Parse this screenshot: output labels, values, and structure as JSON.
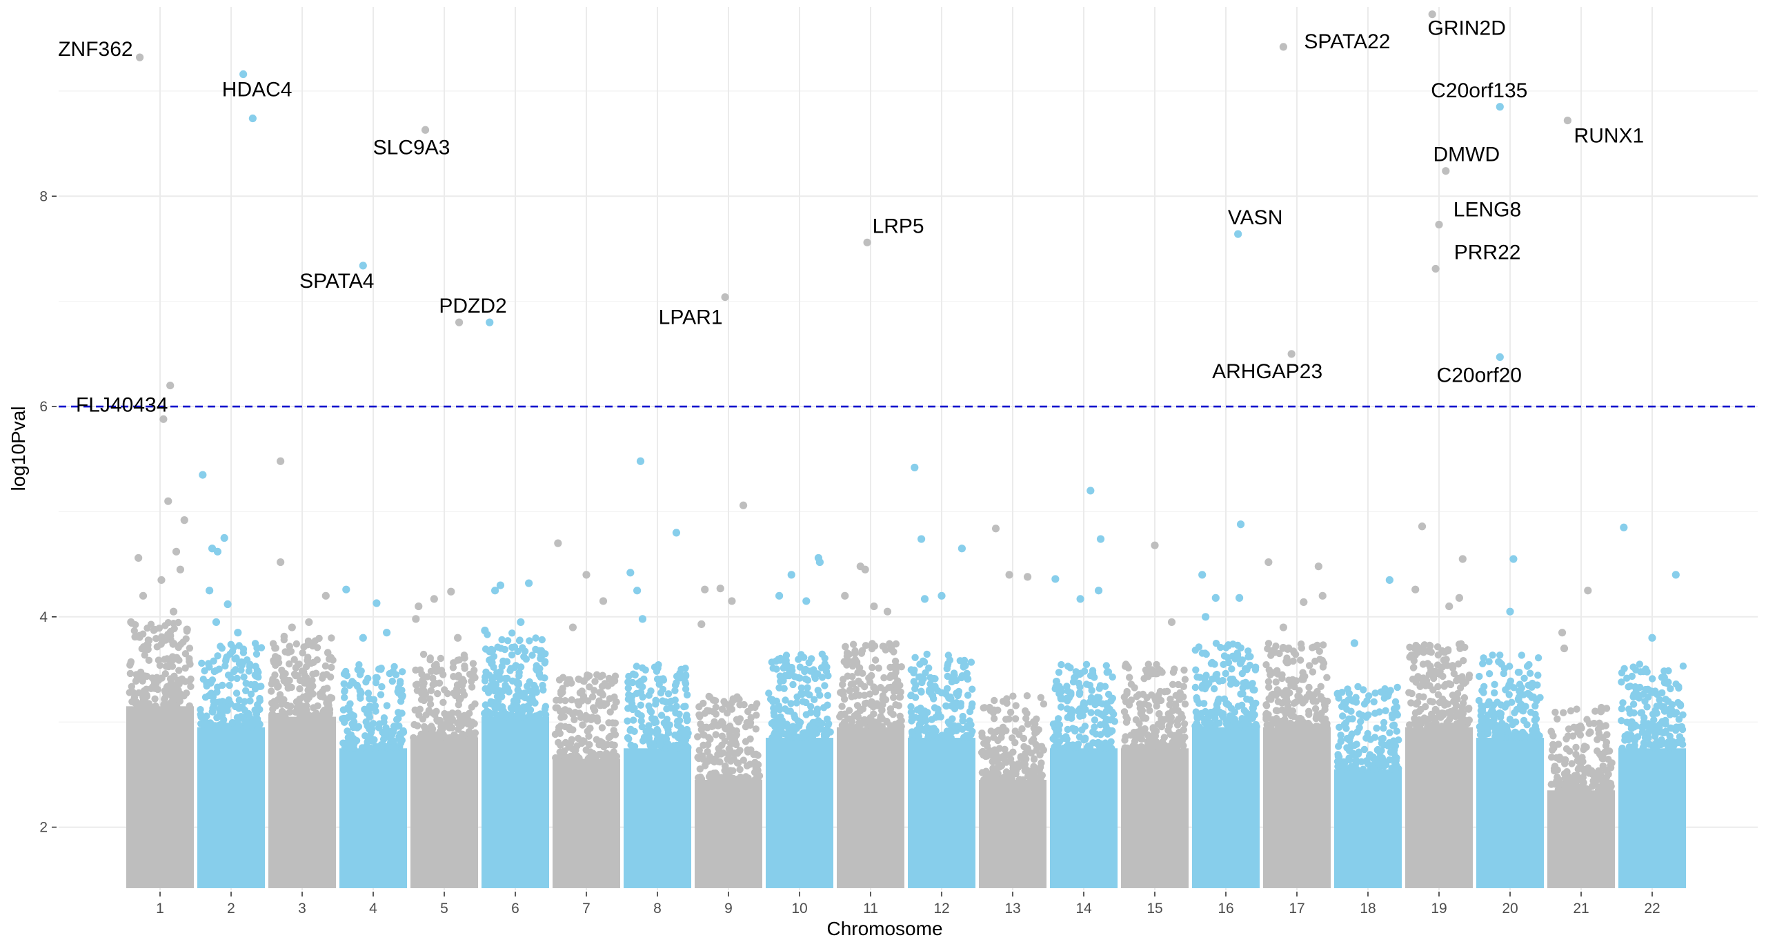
{
  "chart_data": {
    "type": "scatter",
    "xlabel": "Chromosome",
    "ylabel": "log10Pval",
    "ylim": [
      1.4,
      9.8
    ],
    "y_ticks": [
      2,
      4,
      6,
      8
    ],
    "threshold": 6,
    "grid": true,
    "legend": "none",
    "colors": {
      "odd": "#bebebe",
      "even": "#87ceeb",
      "threshold": "#0000cc"
    },
    "chromosomes": [
      "1",
      "2",
      "3",
      "4",
      "5",
      "6",
      "7",
      "8",
      "9",
      "10",
      "11",
      "12",
      "13",
      "14",
      "15",
      "16",
      "17",
      "18",
      "19",
      "20",
      "21",
      "22"
    ],
    "chromosome_tops": [
      3.7,
      3.5,
      3.6,
      3.3,
      3.4,
      3.6,
      3.2,
      3.3,
      3.0,
      3.4,
      3.5,
      3.4,
      3.0,
      3.3,
      3.3,
      3.5,
      3.5,
      3.1,
      3.5,
      3.4,
      2.9,
      3.3
    ],
    "scattered_points": [
      {
        "chr": 1,
        "x": 0.18,
        "y": 4.56
      },
      {
        "chr": 1,
        "x": 0.62,
        "y": 5.1
      },
      {
        "chr": 1,
        "x": 0.25,
        "y": 4.2
      },
      {
        "chr": 1,
        "x": 0.8,
        "y": 4.45
      },
      {
        "chr": 1,
        "x": 0.7,
        "y": 4.05
      },
      {
        "chr": 1,
        "x": 0.74,
        "y": 4.62
      },
      {
        "chr": 1,
        "x": 0.86,
        "y": 4.92
      },
      {
        "chr": 1,
        "x": 0.52,
        "y": 4.35
      },
      {
        "chr": 1,
        "x": 0.55,
        "y": 5.88
      },
      {
        "chr": 1,
        "x": 0.07,
        "y": 3.95
      },
      {
        "chr": 1,
        "x": 0.9,
        "y": 3.88
      },
      {
        "chr": 2,
        "x": 0.08,
        "y": 5.35
      },
      {
        "chr": 2,
        "x": 0.4,
        "y": 4.75
      },
      {
        "chr": 2,
        "x": 0.22,
        "y": 4.65
      },
      {
        "chr": 2,
        "x": 0.3,
        "y": 4.62
      },
      {
        "chr": 2,
        "x": 0.18,
        "y": 4.25
      },
      {
        "chr": 2,
        "x": 0.45,
        "y": 4.12
      },
      {
        "chr": 2,
        "x": 0.6,
        "y": 3.85
      },
      {
        "chr": 2,
        "x": 0.28,
        "y": 3.95
      },
      {
        "chr": 3,
        "x": 0.18,
        "y": 5.48
      },
      {
        "chr": 3,
        "x": 0.18,
        "y": 4.52
      },
      {
        "chr": 3,
        "x": 0.85,
        "y": 4.2
      },
      {
        "chr": 3,
        "x": 0.6,
        "y": 3.95
      },
      {
        "chr": 3,
        "x": 0.35,
        "y": 3.9
      },
      {
        "chr": 4,
        "x": 0.1,
        "y": 4.26
      },
      {
        "chr": 4,
        "x": 0.55,
        "y": 4.13
      },
      {
        "chr": 4,
        "x": 0.7,
        "y": 3.85
      },
      {
        "chr": 4,
        "x": 0.35,
        "y": 3.8
      },
      {
        "chr": 5,
        "x": 0.12,
        "y": 4.1
      },
      {
        "chr": 5,
        "x": 0.35,
        "y": 4.17
      },
      {
        "chr": 5,
        "x": 0.6,
        "y": 4.24
      },
      {
        "chr": 5,
        "x": 0.08,
        "y": 3.98
      },
      {
        "chr": 5,
        "x": 0.7,
        "y": 3.8
      },
      {
        "chr": 6,
        "x": 0.2,
        "y": 4.25
      },
      {
        "chr": 6,
        "x": 0.28,
        "y": 4.3
      },
      {
        "chr": 6,
        "x": 0.7,
        "y": 4.32
      },
      {
        "chr": 6,
        "x": 0.58,
        "y": 3.95
      },
      {
        "chr": 6,
        "x": 0.05,
        "y": 3.87
      },
      {
        "chr": 7,
        "x": 0.08,
        "y": 4.7
      },
      {
        "chr": 7,
        "x": 0.5,
        "y": 4.4
      },
      {
        "chr": 7,
        "x": 0.75,
        "y": 4.15
      },
      {
        "chr": 7,
        "x": 0.3,
        "y": 3.9
      },
      {
        "chr": 8,
        "x": 0.1,
        "y": 4.42
      },
      {
        "chr": 8,
        "x": 0.25,
        "y": 5.48
      },
      {
        "chr": 8,
        "x": 0.78,
        "y": 4.8
      },
      {
        "chr": 8,
        "x": 0.2,
        "y": 4.25
      },
      {
        "chr": 8,
        "x": 0.28,
        "y": 3.98
      },
      {
        "chr": 9,
        "x": 0.15,
        "y": 4.26
      },
      {
        "chr": 9,
        "x": 0.38,
        "y": 4.27
      },
      {
        "chr": 9,
        "x": 0.72,
        "y": 5.06
      },
      {
        "chr": 9,
        "x": 0.55,
        "y": 4.15
      },
      {
        "chr": 9,
        "x": 0.1,
        "y": 3.93
      },
      {
        "chr": 10,
        "x": 0.2,
        "y": 4.2
      },
      {
        "chr": 10,
        "x": 0.38,
        "y": 4.4
      },
      {
        "chr": 10,
        "x": 0.78,
        "y": 4.56
      },
      {
        "chr": 10,
        "x": 0.8,
        "y": 4.52
      },
      {
        "chr": 10,
        "x": 0.6,
        "y": 4.15
      },
      {
        "chr": 11,
        "x": 0.35,
        "y": 4.48
      },
      {
        "chr": 11,
        "x": 0.42,
        "y": 4.45
      },
      {
        "chr": 11,
        "x": 0.12,
        "y": 4.2
      },
      {
        "chr": 11,
        "x": 0.55,
        "y": 4.1
      },
      {
        "chr": 11,
        "x": 0.75,
        "y": 4.05
      },
      {
        "chr": 12,
        "x": 0.1,
        "y": 5.42
      },
      {
        "chr": 12,
        "x": 0.2,
        "y": 4.74
      },
      {
        "chr": 12,
        "x": 0.8,
        "y": 4.65
      },
      {
        "chr": 12,
        "x": 0.5,
        "y": 4.2
      },
      {
        "chr": 12,
        "x": 0.25,
        "y": 4.17
      },
      {
        "chr": 13,
        "x": 0.25,
        "y": 4.84
      },
      {
        "chr": 13,
        "x": 0.45,
        "y": 4.4
      },
      {
        "chr": 13,
        "x": 0.72,
        "y": 4.38
      },
      {
        "chr": 14,
        "x": 0.08,
        "y": 4.36
      },
      {
        "chr": 14,
        "x": 0.6,
        "y": 5.2
      },
      {
        "chr": 14,
        "x": 0.75,
        "y": 4.74
      },
      {
        "chr": 14,
        "x": 0.72,
        "y": 4.25
      },
      {
        "chr": 14,
        "x": 0.45,
        "y": 4.17
      },
      {
        "chr": 15,
        "x": 0.5,
        "y": 4.68
      },
      {
        "chr": 15,
        "x": 0.75,
        "y": 3.95
      },
      {
        "chr": 16,
        "x": 0.15,
        "y": 4.4
      },
      {
        "chr": 16,
        "x": 0.72,
        "y": 4.88
      },
      {
        "chr": 16,
        "x": 0.35,
        "y": 4.18
      },
      {
        "chr": 16,
        "x": 0.7,
        "y": 4.18
      },
      {
        "chr": 16,
        "x": 0.2,
        "y": 4.0
      },
      {
        "chr": 17,
        "x": 0.08,
        "y": 4.52
      },
      {
        "chr": 17,
        "x": 0.82,
        "y": 4.48
      },
      {
        "chr": 17,
        "x": 0.6,
        "y": 4.14
      },
      {
        "chr": 17,
        "x": 0.88,
        "y": 4.2
      },
      {
        "chr": 17,
        "x": 0.3,
        "y": 3.9
      },
      {
        "chr": 18,
        "x": 0.82,
        "y": 4.35
      },
      {
        "chr": 18,
        "x": 0.3,
        "y": 3.75
      },
      {
        "chr": 19,
        "x": 0.25,
        "y": 4.86
      },
      {
        "chr": 19,
        "x": 0.15,
        "y": 4.26
      },
      {
        "chr": 19,
        "x": 0.65,
        "y": 4.1
      },
      {
        "chr": 19,
        "x": 0.85,
        "y": 4.55
      },
      {
        "chr": 19,
        "x": 0.8,
        "y": 4.18
      },
      {
        "chr": 20,
        "x": 0.55,
        "y": 4.55
      },
      {
        "chr": 20,
        "x": 0.5,
        "y": 4.05
      },
      {
        "chr": 21,
        "x": 0.22,
        "y": 3.85
      },
      {
        "chr": 21,
        "x": 0.6,
        "y": 4.25
      },
      {
        "chr": 21,
        "x": 0.25,
        "y": 3.7
      },
      {
        "chr": 22,
        "x": 0.08,
        "y": 4.85
      },
      {
        "chr": 22,
        "x": 0.85,
        "y": 4.4
      },
      {
        "chr": 22,
        "x": 0.5,
        "y": 3.8
      }
    ],
    "labeled_points": [
      {
        "gene": "ZNF362",
        "chr": 1,
        "x": 0.2,
        "y": 9.32,
        "label_align": "right"
      },
      {
        "gene": "FLJ40434",
        "chr": 1,
        "x": 0.65,
        "y": 6.2,
        "label_align": "center"
      },
      {
        "gene": "HDAC4",
        "chr": 2,
        "x": 0.68,
        "y": 9.16,
        "label_align": "center"
      },
      {
        "gene": "",
        "chr": 2,
        "x": 0.82,
        "y": 8.74,
        "label_align": "none"
      },
      {
        "gene": "SLC9A3",
        "chr": 5,
        "x": 0.22,
        "y": 8.63,
        "label_align": "center"
      },
      {
        "gene": "SPATA4",
        "chr": 4,
        "x": 0.35,
        "y": 7.34,
        "label_align": "center"
      },
      {
        "gene": "PDZD2",
        "chr": 5,
        "x": 0.72,
        "y": 6.8,
        "label_align": "center"
      },
      {
        "gene": "",
        "chr": 6,
        "x": 0.12,
        "y": 6.8,
        "label_align": "none"
      },
      {
        "gene": "LPAR1",
        "chr": 9,
        "x": 0.45,
        "y": 7.04,
        "label_align": "center"
      },
      {
        "gene": "LRP5",
        "chr": 11,
        "x": 0.45,
        "y": 7.56,
        "label_align": "center"
      },
      {
        "gene": "VASN",
        "chr": 16,
        "x": 0.68,
        "y": 7.64,
        "label_align": "center"
      },
      {
        "gene": "ARHGAP23",
        "chr": 17,
        "x": 0.42,
        "y": 6.5,
        "label_align": "center"
      },
      {
        "gene": "SPATA22",
        "chr": 17,
        "x": 0.3,
        "y": 9.42,
        "label_align": "left"
      },
      {
        "gene": "GRIN2D",
        "chr": 19,
        "x": 0.4,
        "y": 9.73,
        "label_align": "center"
      },
      {
        "gene": "C20orf135",
        "chr": 20,
        "x": 0.35,
        "y": 8.85,
        "label_align": "center"
      },
      {
        "gene": "RUNX1",
        "chr": 21,
        "x": 0.3,
        "y": 8.72,
        "label_align": "center"
      },
      {
        "gene": "DMWD",
        "chr": 19,
        "x": 0.6,
        "y": 8.24,
        "label_align": "center"
      },
      {
        "gene": "LENG8",
        "chr": 19,
        "x": 0.5,
        "y": 7.73,
        "label_align": "center"
      },
      {
        "gene": "PRR22",
        "chr": 19,
        "x": 0.45,
        "y": 7.31,
        "label_align": "center"
      },
      {
        "gene": "C20orf20",
        "chr": 20,
        "x": 0.35,
        "y": 6.47,
        "label_align": "center"
      }
    ]
  }
}
